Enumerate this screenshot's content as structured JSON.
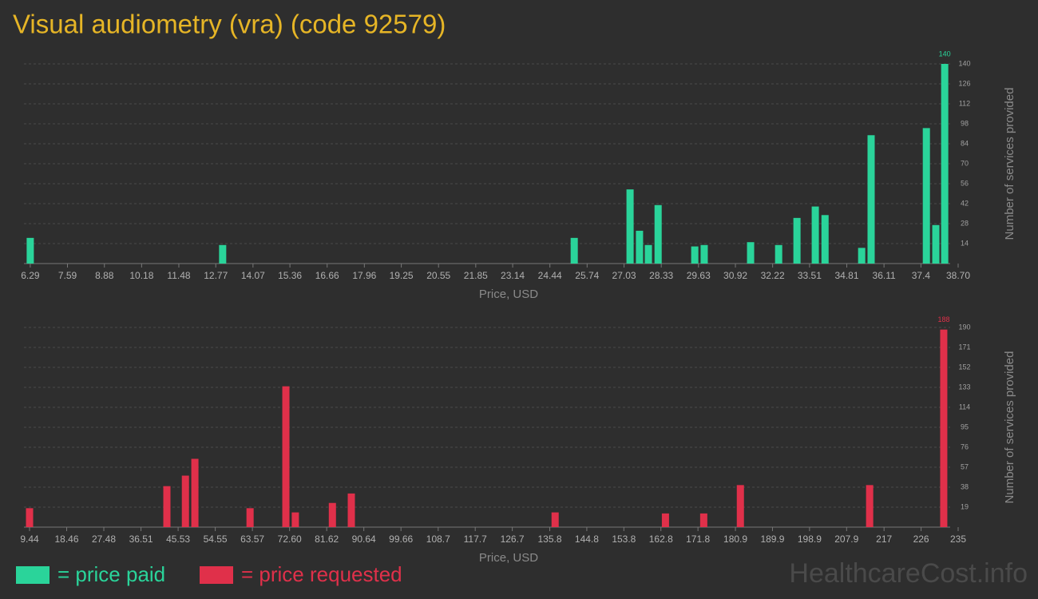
{
  "title": "Visual audiometry (vra) (code 92579)",
  "watermark": "HealthcareCost.info",
  "chart_data": [
    {
      "type": "bar",
      "x": [
        6.29,
        13.01,
        25.29,
        27.24,
        27.57,
        27.88,
        28.22,
        29.5,
        29.83,
        31.45,
        32.43,
        33.07,
        33.71,
        34.05,
        35.33,
        35.66,
        37.59,
        37.92,
        38.23
      ],
      "series": [
        {
          "name": "= price paid",
          "color": "#2ad49a",
          "values": [
            18,
            13,
            18,
            52,
            23,
            13,
            41,
            12,
            13,
            15,
            13,
            32,
            40,
            34,
            11,
            90,
            95,
            27,
            140
          ],
          "value_labels": [
            null,
            null,
            null,
            null,
            null,
            null,
            null,
            null,
            null,
            null,
            null,
            null,
            null,
            null,
            null,
            null,
            null,
            null,
            "140"
          ]
        }
      ],
      "xlim": [
        6.07,
        38.7
      ],
      "xticks": [
        6.29,
        7.59,
        8.88,
        10.18,
        11.48,
        12.77,
        14.07,
        15.36,
        16.66,
        17.96,
        19.25,
        20.55,
        21.85,
        23.14,
        24.44,
        25.74,
        27.03,
        28.33,
        29.63,
        30.92,
        32.22,
        33.51,
        34.81,
        36.11,
        37.4,
        {
          "value": 38.7,
          "label": "38.70"
        }
      ],
      "ylim": [
        0,
        140
      ],
      "yticks": [
        14,
        28,
        42,
        56,
        70,
        84,
        98,
        112,
        126,
        140
      ],
      "xlabel": "Price, USD",
      "ylabel": "Number of services provided",
      "grid": true
    },
    {
      "type": "bar",
      "x": [
        9.44,
        42.8,
        47.3,
        49.6,
        63.0,
        71.7,
        74.0,
        83.0,
        87.6,
        137.1,
        163.9,
        173.2,
        182.1,
        213.5,
        231.5
      ],
      "series": [
        {
          "name": "= price requested",
          "color": "#e0304a",
          "values": [
            18,
            39,
            49,
            65,
            18,
            134,
            14,
            23,
            32,
            14,
            13,
            13,
            40,
            40,
            188
          ],
          "value_labels": [
            null,
            null,
            null,
            null,
            null,
            null,
            null,
            null,
            null,
            null,
            null,
            null,
            null,
            null,
            "188"
          ]
        }
      ],
      "xlim": [
        8.08,
        235
      ],
      "xticks": [
        9.44,
        18.46,
        27.48,
        36.51,
        45.53,
        54.55,
        63.57,
        {
          "value": 72.6,
          "label": "72.60"
        },
        81.62,
        90.64,
        99.66,
        108.7,
        117.7,
        126.7,
        135.8,
        144.8,
        153.8,
        162.8,
        171.8,
        180.9,
        189.9,
        198.9,
        207.9,
        217,
        226,
        235
      ],
      "ylim": [
        0,
        190
      ],
      "yticks": [
        19,
        38,
        57,
        76,
        95,
        114,
        133,
        152,
        171,
        190
      ],
      "xlabel": "Price, USD",
      "ylabel": "Number of services provided",
      "grid": true
    }
  ]
}
